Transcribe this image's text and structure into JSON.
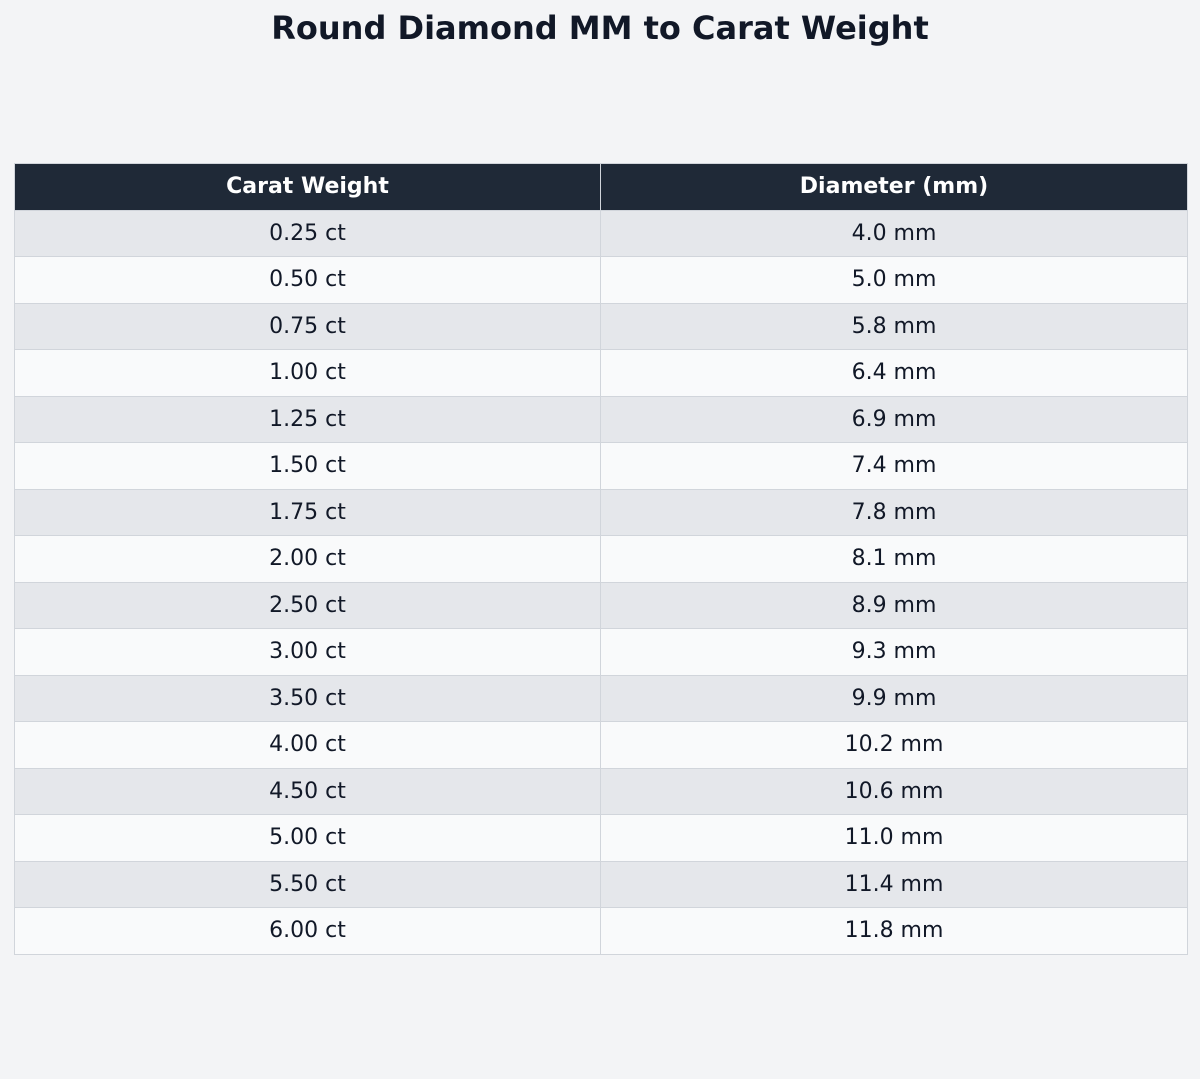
{
  "chart_data": {
    "type": "table",
    "title": "Round Diamond MM to Carat Weight",
    "columns": [
      "Carat Weight",
      "Diameter (mm)"
    ],
    "rows": [
      [
        "0.25 ct",
        "4.0 mm"
      ],
      [
        "0.50 ct",
        "5.0 mm"
      ],
      [
        "0.75 ct",
        "5.8 mm"
      ],
      [
        "1.00 ct",
        "6.4 mm"
      ],
      [
        "1.25 ct",
        "6.9 mm"
      ],
      [
        "1.50 ct",
        "7.4 mm"
      ],
      [
        "1.75 ct",
        "7.8 mm"
      ],
      [
        "2.00 ct",
        "8.1 mm"
      ],
      [
        "2.50 ct",
        "8.9 mm"
      ],
      [
        "3.00 ct",
        "9.3 mm"
      ],
      [
        "3.50 ct",
        "9.9 mm"
      ],
      [
        "4.00 ct",
        "10.2 mm"
      ],
      [
        "4.50 ct",
        "10.6 mm"
      ],
      [
        "5.00 ct",
        "11.0 mm"
      ],
      [
        "5.50 ct",
        "11.4 mm"
      ],
      [
        "6.00 ct",
        "11.8 mm"
      ]
    ]
  },
  "colors": {
    "background": "#f3f4f6",
    "header_bg": "#1f2937",
    "header_text": "#ffffff",
    "row_odd": "#e5e7eb",
    "row_even": "#f9fafb",
    "border": "#d1d5db",
    "text": "#111827"
  }
}
